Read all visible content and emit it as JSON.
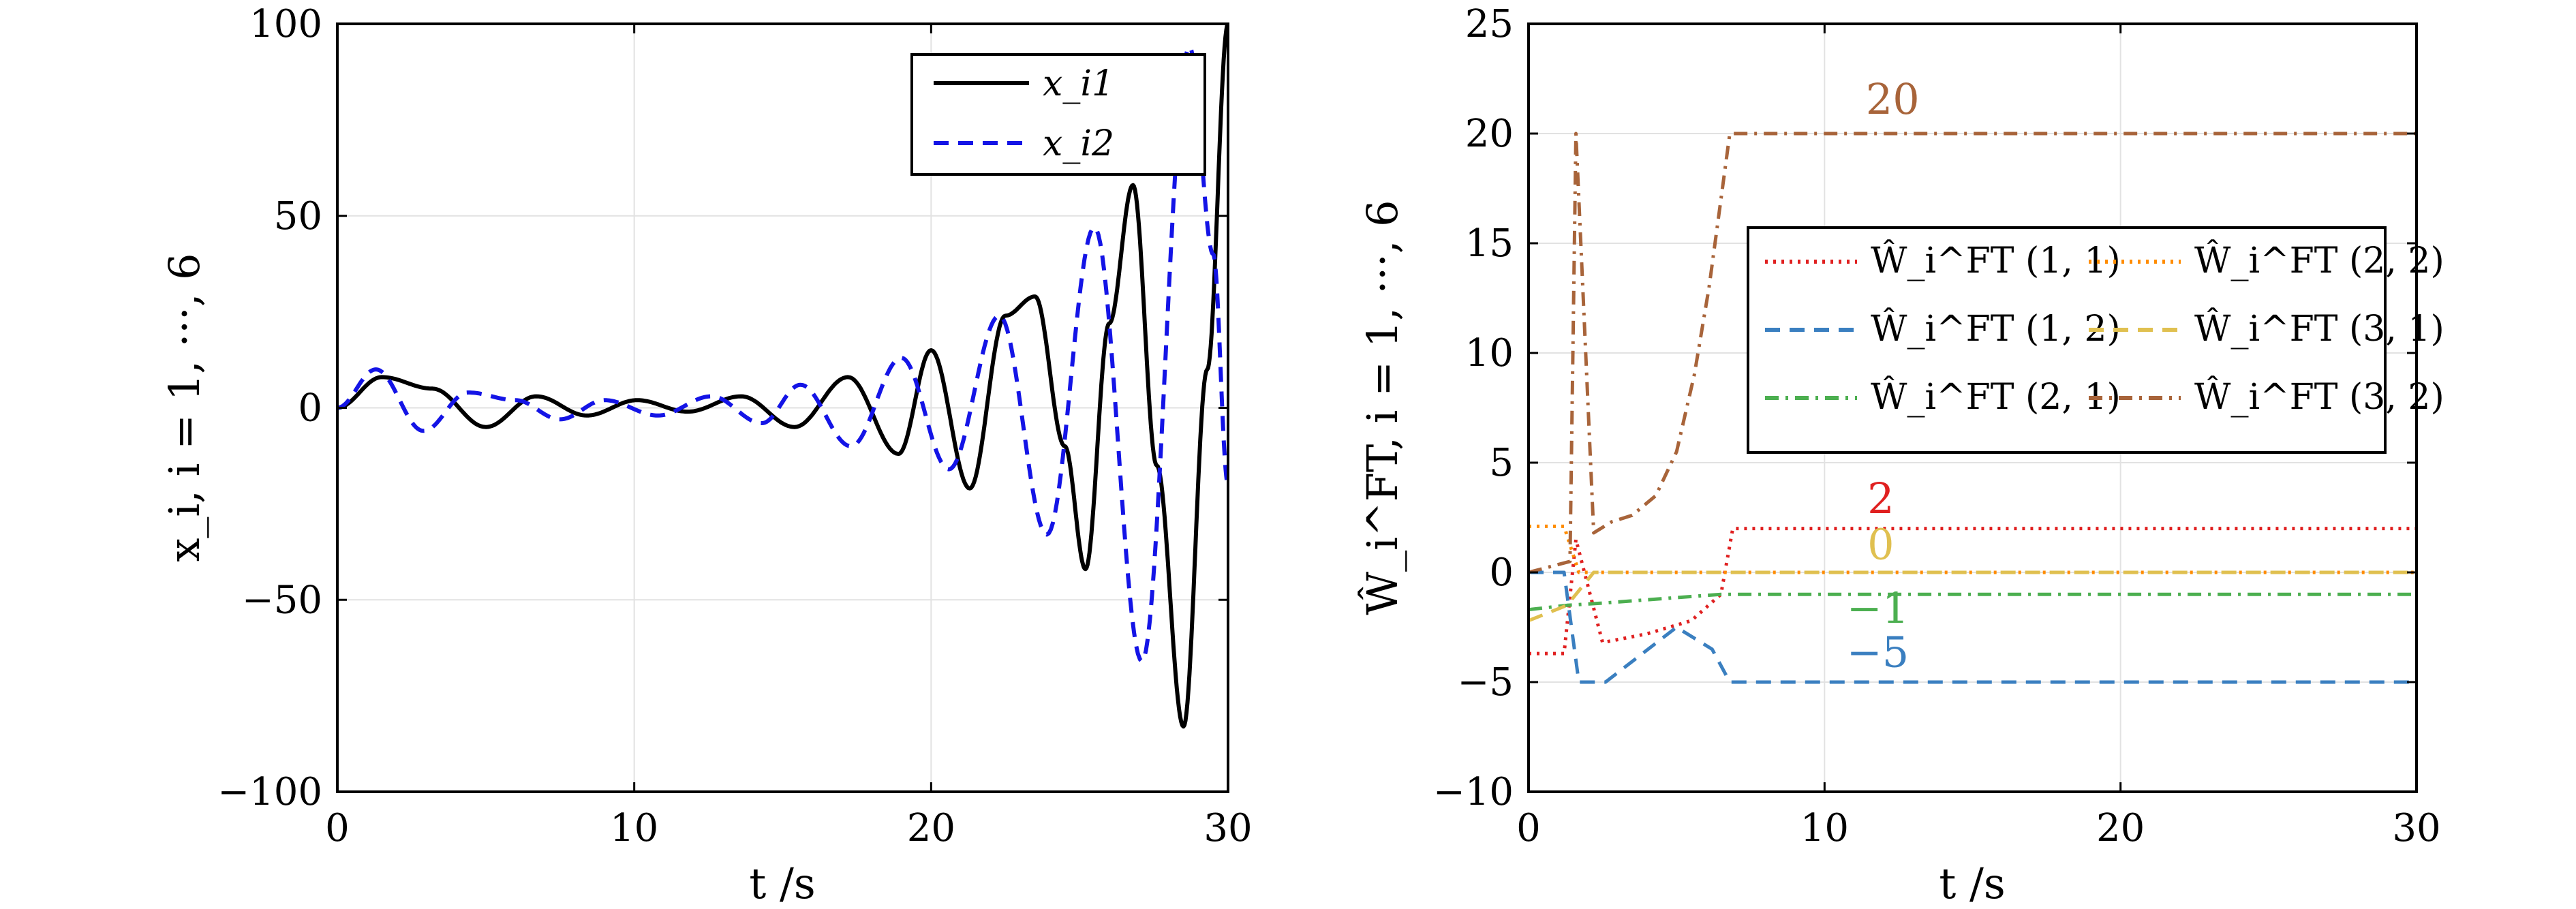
{
  "chart_data": [
    {
      "type": "line",
      "xlabel": "t /s",
      "ylabel": "x_i, i = 1, ···, 6",
      "xlim": [
        0,
        30
      ],
      "ylim": [
        -100,
        100
      ],
      "xticks": [
        "0",
        "10",
        "20",
        "30"
      ],
      "yticks": [
        "100",
        "50",
        "0",
        "−50",
        "−100"
      ],
      "grid": true,
      "legend_position": "top-right",
      "series": [
        {
          "name": "x_i1",
          "color": "#000000",
          "style": "solid",
          "x": [
            0,
            1.5,
            3.2,
            5,
            6.7,
            8.4,
            10.1,
            11.8,
            13.6,
            15.4,
            17.2,
            18.9,
            20.0,
            21.3,
            22.5,
            23.5,
            24.5,
            25.2,
            26.0,
            26.8,
            27.6,
            28.5,
            29.3,
            30
          ],
          "y": [
            0,
            8,
            5,
            -5,
            3,
            -2,
            2,
            -1,
            3,
            -5,
            8,
            -12,
            15,
            -21,
            24,
            29,
            -10,
            -42,
            22,
            58,
            -15,
            -83,
            10,
            100
          ]
        },
        {
          "name": "x_i2",
          "color": "#1414e6",
          "style": "dashed",
          "x": [
            0,
            1.3,
            2.9,
            4.4,
            6.0,
            7.5,
            9.0,
            10.8,
            12.6,
            14.3,
            15.6,
            17.3,
            19.0,
            20.6,
            22.3,
            23.9,
            25.5,
            27.1,
            28.7,
            29.5,
            30
          ],
          "y": [
            0,
            10,
            -6,
            4,
            2,
            -3,
            2,
            -2,
            3,
            -4,
            6,
            -10,
            13,
            -16,
            24,
            -33,
            47,
            -66,
            94,
            40,
            -20
          ]
        }
      ]
    },
    {
      "type": "line",
      "xlabel": "t /s",
      "ylabel": "Ŵ_i^FT, i = 1, ···, 6",
      "xlim": [
        0,
        30
      ],
      "ylim": [
        -10,
        25
      ],
      "xticks": [
        "0",
        "10",
        "20",
        "30"
      ],
      "yticks": [
        "25",
        "20",
        "15",
        "10",
        "5",
        "0",
        "−5",
        "−10"
      ],
      "grid": true,
      "legend_position": "center-right",
      "annotations": [
        {
          "text": "20",
          "x": 12.3,
          "y": 20.9,
          "color": "#a8643a"
        },
        {
          "text": "2",
          "x": 11.9,
          "y": 2.7,
          "color": "#e02020"
        },
        {
          "text": "0",
          "x": 11.9,
          "y": 0.6,
          "color": "#e0c050"
        },
        {
          "text": "−1",
          "x": 11.8,
          "y": -2.3,
          "color": "#4caf50"
        },
        {
          "text": "−5",
          "x": 11.8,
          "y": -4.3,
          "color": "#3a7fc0"
        }
      ],
      "series": [
        {
          "name": "Ŵ_i^FT (1, 1)",
          "color": "#e02020",
          "style": "dotted",
          "final": 2,
          "x": [
            0,
            1.2,
            1.6,
            2.5,
            4.0,
            5.5,
            6.5,
            6.9,
            30
          ],
          "y": [
            -3.7,
            -3.7,
            1.5,
            -3.2,
            -2.8,
            -2.2,
            -1.0,
            2,
            2
          ]
        },
        {
          "name": "Ŵ_i^FT (1, 2)",
          "color": "#3a7fc0",
          "style": "dashed",
          "final": -5,
          "x": [
            0,
            1.2,
            1.7,
            2.6,
            5.0,
            6.2,
            6.8,
            30
          ],
          "y": [
            0,
            0,
            -5,
            -5,
            -2.5,
            -3.5,
            -5,
            -5
          ]
        },
        {
          "name": "Ŵ_i^FT (2, 1)",
          "color": "#4caf50",
          "style": "dashdot",
          "final": -1,
          "x": [
            0,
            1.3,
            2.5,
            4.5,
            6.5,
            30
          ],
          "y": [
            -1.7,
            -1.5,
            -1.4,
            -1.2,
            -1,
            -1
          ]
        },
        {
          "name": "Ŵ_i^FT (2, 2)",
          "color": "#ff8c00",
          "style": "dotted",
          "final": 0,
          "x": [
            0,
            1.2,
            1.7,
            30
          ],
          "y": [
            2.1,
            2.1,
            0,
            0
          ]
        },
        {
          "name": "Ŵ_i^FT (3, 1)",
          "color": "#e0c050",
          "style": "dashed",
          "final": 0,
          "x": [
            0,
            1.3,
            2.2,
            30
          ],
          "y": [
            -2.2,
            -1.5,
            0,
            0
          ]
        },
        {
          "name": "Ŵ_i^FT (3, 2)",
          "color": "#a8643a",
          "style": "dashdot",
          "final": 20,
          "x": [
            0,
            1.4,
            1.6,
            2.2,
            2.8,
            3.5,
            4.3,
            5.0,
            5.6,
            6.1,
            6.5,
            6.8,
            30
          ],
          "y": [
            0,
            0.5,
            20,
            1.8,
            2.3,
            2.6,
            3.5,
            5.5,
            9.0,
            13.0,
            17.0,
            20,
            20
          ]
        }
      ]
    }
  ]
}
